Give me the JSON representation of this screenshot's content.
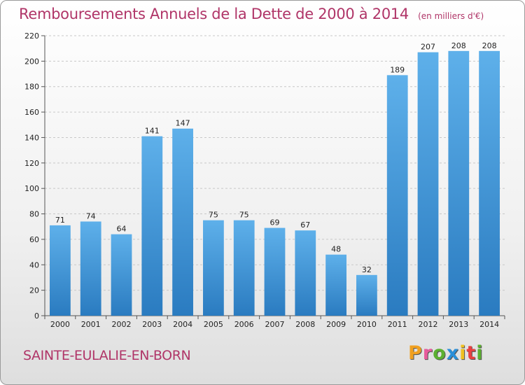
{
  "chart_data": {
    "type": "bar",
    "title": "Remboursements Annuels de la Dette de 2000 à 2014",
    "unit": "(en milliers d'€)",
    "categories": [
      "2000",
      "2001",
      "2002",
      "2003",
      "2004",
      "2005",
      "2006",
      "2007",
      "2008",
      "2009",
      "2010",
      "2011",
      "2012",
      "2013",
      "2014"
    ],
    "values": [
      71,
      74,
      64,
      141,
      147,
      75,
      75,
      69,
      67,
      48,
      32,
      189,
      207,
      208,
      208
    ],
    "ylim": [
      0,
      220
    ],
    "yticks": [
      0,
      20,
      40,
      60,
      80,
      100,
      120,
      140,
      160,
      180,
      200,
      220
    ],
    "grid": true,
    "xlabel": "",
    "ylabel": ""
  },
  "commune": "SAINTE-EULALIE-EN-BORN",
  "logo": {
    "letters": [
      "P",
      "r",
      "o",
      "x",
      "i",
      "t",
      "i"
    ],
    "colors": [
      "#f0a020",
      "#e85a9c",
      "#5cb030",
      "#2a8fd8",
      "#f0c020",
      "#e84040",
      "#5cb030"
    ]
  },
  "colors": {
    "bar_light": "#5eb0ea",
    "bar_dark": "#2a7bc0",
    "accent": "#b03568"
  }
}
